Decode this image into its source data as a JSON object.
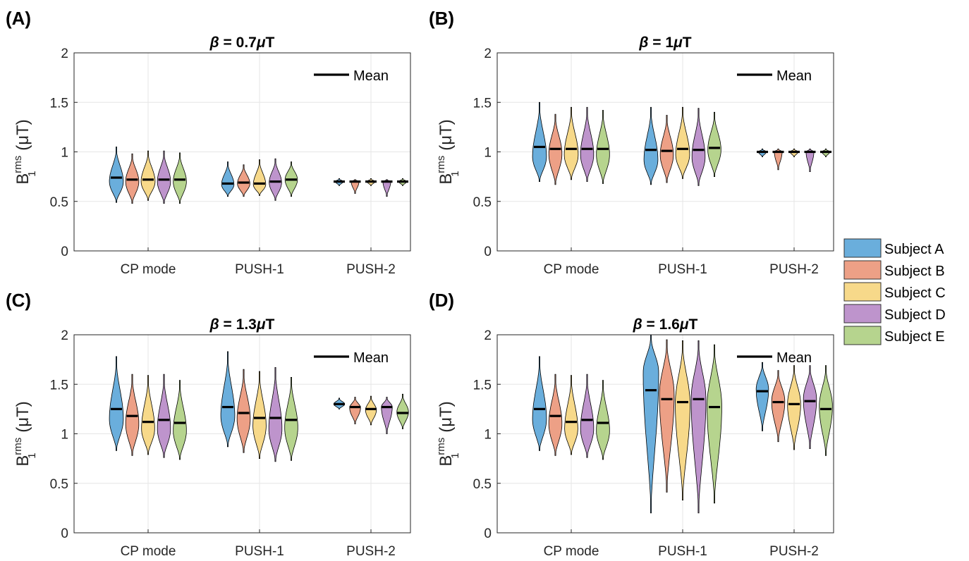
{
  "chart_data": [
    {
      "type": "violin",
      "panel_label": "(A)",
      "title": {
        "symbol": "β",
        "value": " = 0.7",
        "unit_mu": "μ",
        "unit": "T"
      },
      "ylabel": {
        "base": "B",
        "sub": "1",
        "sup": "rms",
        "unit": " (μT)"
      },
      "ylim": [
        0,
        2
      ],
      "yticks": [
        "0",
        "0.5",
        "1",
        "1.5",
        "2"
      ],
      "categories": [
        "CP mode",
        "PUSH-1",
        "PUSH-2"
      ],
      "mean_legend": "Mean",
      "series": [
        {
          "name": "Subject A",
          "violins": [
            {
              "mean": 0.74,
              "min": 0.49,
              "max": 1.05,
              "peak": 0.7,
              "w": 0.9
            },
            {
              "mean": 0.68,
              "min": 0.55,
              "max": 0.9,
              "peak": 0.67,
              "w": 0.8
            },
            {
              "mean": 0.7,
              "min": 0.66,
              "max": 0.73,
              "peak": 0.7,
              "w": 0.5
            }
          ]
        },
        {
          "name": "Subject B",
          "violins": [
            {
              "mean": 0.72,
              "min": 0.48,
              "max": 0.98,
              "peak": 0.7,
              "w": 0.85
            },
            {
              "mean": 0.69,
              "min": 0.55,
              "max": 0.87,
              "peak": 0.68,
              "w": 0.8
            },
            {
              "mean": 0.7,
              "min": 0.58,
              "max": 0.72,
              "peak": 0.7,
              "w": 0.5
            }
          ]
        },
        {
          "name": "Subject C",
          "violins": [
            {
              "mean": 0.72,
              "min": 0.51,
              "max": 1.01,
              "peak": 0.7,
              "w": 0.9
            },
            {
              "mean": 0.68,
              "min": 0.56,
              "max": 0.92,
              "peak": 0.67,
              "w": 0.8
            },
            {
              "mean": 0.7,
              "min": 0.66,
              "max": 0.73,
              "peak": 0.7,
              "w": 0.5
            }
          ]
        },
        {
          "name": "Subject D",
          "violins": [
            {
              "mean": 0.72,
              "min": 0.48,
              "max": 1.01,
              "peak": 0.7,
              "w": 0.85
            },
            {
              "mean": 0.7,
              "min": 0.51,
              "max": 0.93,
              "peak": 0.69,
              "w": 0.8
            },
            {
              "mean": 0.7,
              "min": 0.55,
              "max": 0.72,
              "peak": 0.7,
              "w": 0.5
            }
          ]
        },
        {
          "name": "Subject E",
          "violins": [
            {
              "mean": 0.72,
              "min": 0.48,
              "max": 0.99,
              "peak": 0.7,
              "w": 0.85
            },
            {
              "mean": 0.72,
              "min": 0.55,
              "max": 0.9,
              "peak": 0.72,
              "w": 0.8
            },
            {
              "mean": 0.7,
              "min": 0.66,
              "max": 0.73,
              "peak": 0.7,
              "w": 0.5
            }
          ]
        }
      ]
    },
    {
      "type": "violin",
      "panel_label": "(B)",
      "title": {
        "symbol": "β",
        "value": " = 1",
        "unit_mu": "μ",
        "unit": "T"
      },
      "ylabel": {
        "base": "B",
        "sub": "1",
        "sup": "rms",
        "unit": " (μT)"
      },
      "ylim": [
        0,
        2
      ],
      "yticks": [
        "0",
        "0.5",
        "1",
        "1.5",
        "2"
      ],
      "categories": [
        "CP mode",
        "PUSH-1",
        "PUSH-2"
      ],
      "mean_legend": "Mean",
      "series": [
        {
          "name": "Subject A",
          "violins": [
            {
              "mean": 1.05,
              "min": 0.7,
              "max": 1.5,
              "peak": 0.95,
              "w": 0.9
            },
            {
              "mean": 1.02,
              "min": 0.67,
              "max": 1.45,
              "peak": 0.92,
              "w": 0.9
            },
            {
              "mean": 1.0,
              "min": 0.95,
              "max": 1.03,
              "peak": 1.0,
              "w": 0.5
            }
          ]
        },
        {
          "name": "Subject B",
          "violins": [
            {
              "mean": 1.03,
              "min": 0.67,
              "max": 1.38,
              "peak": 0.98,
              "w": 0.85
            },
            {
              "mean": 1.01,
              "min": 0.69,
              "max": 1.37,
              "peak": 0.97,
              "w": 0.85
            },
            {
              "mean": 1.0,
              "min": 0.82,
              "max": 1.03,
              "peak": 1.0,
              "w": 0.5
            }
          ]
        },
        {
          "name": "Subject C",
          "violins": [
            {
              "mean": 1.03,
              "min": 0.72,
              "max": 1.45,
              "peak": 0.97,
              "w": 0.9
            },
            {
              "mean": 1.03,
              "min": 0.73,
              "max": 1.45,
              "peak": 0.97,
              "w": 0.9
            },
            {
              "mean": 1.0,
              "min": 0.95,
              "max": 1.03,
              "peak": 1.0,
              "w": 0.5
            }
          ]
        },
        {
          "name": "Subject D",
          "violins": [
            {
              "mean": 1.03,
              "min": 0.7,
              "max": 1.45,
              "peak": 0.97,
              "w": 0.85
            },
            {
              "mean": 1.02,
              "min": 0.66,
              "max": 1.44,
              "peak": 0.95,
              "w": 0.85
            },
            {
              "mean": 1.0,
              "min": 0.8,
              "max": 1.03,
              "peak": 1.0,
              "w": 0.5
            }
          ]
        },
        {
          "name": "Subject E",
          "violins": [
            {
              "mean": 1.03,
              "min": 0.68,
              "max": 1.42,
              "peak": 0.97,
              "w": 0.85
            },
            {
              "mean": 1.04,
              "min": 0.75,
              "max": 1.4,
              "peak": 1.02,
              "w": 0.85
            },
            {
              "mean": 1.0,
              "min": 0.95,
              "max": 1.03,
              "peak": 1.0,
              "w": 0.5
            }
          ]
        }
      ]
    },
    {
      "type": "violin",
      "panel_label": "(C)",
      "title": {
        "symbol": "β",
        "value": " = 1.3",
        "unit_mu": "μ",
        "unit": "T"
      },
      "ylabel": {
        "base": "B",
        "sub": "1",
        "sup": "rms",
        "unit": " (μT)"
      },
      "ylim": [
        0,
        2
      ],
      "yticks": [
        "0",
        "0.5",
        "1",
        "1.5",
        "2"
      ],
      "categories": [
        "CP mode",
        "PUSH-1",
        "PUSH-2"
      ],
      "mean_legend": "Mean",
      "series": [
        {
          "name": "Subject A",
          "violins": [
            {
              "mean": 1.25,
              "min": 0.83,
              "max": 1.78,
              "peak": 1.15,
              "w": 0.9
            },
            {
              "mean": 1.27,
              "min": 0.87,
              "max": 1.83,
              "peak": 1.18,
              "w": 0.9
            },
            {
              "mean": 1.3,
              "min": 1.25,
              "max": 1.36,
              "peak": 1.3,
              "w": 0.7
            }
          ]
        },
        {
          "name": "Subject B",
          "violins": [
            {
              "mean": 1.18,
              "min": 0.78,
              "max": 1.6,
              "peak": 1.1,
              "w": 0.85
            },
            {
              "mean": 1.21,
              "min": 0.81,
              "max": 1.65,
              "peak": 1.15,
              "w": 0.85
            },
            {
              "mean": 1.27,
              "min": 1.1,
              "max": 1.37,
              "peak": 1.26,
              "w": 0.7
            }
          ]
        },
        {
          "name": "Subject C",
          "violins": [
            {
              "mean": 1.12,
              "min": 0.79,
              "max": 1.59,
              "peak": 1.05,
              "w": 0.85
            },
            {
              "mean": 1.16,
              "min": 0.75,
              "max": 1.63,
              "peak": 1.08,
              "w": 0.85
            },
            {
              "mean": 1.25,
              "min": 1.09,
              "max": 1.38,
              "peak": 1.24,
              "w": 0.7
            }
          ]
        },
        {
          "name": "Subject D",
          "violins": [
            {
              "mean": 1.14,
              "min": 0.76,
              "max": 1.6,
              "peak": 1.05,
              "w": 0.85
            },
            {
              "mean": 1.16,
              "min": 0.72,
              "max": 1.67,
              "peak": 1.05,
              "w": 0.85
            },
            {
              "mean": 1.27,
              "min": 1.0,
              "max": 1.37,
              "peak": 1.27,
              "w": 0.7
            }
          ]
        },
        {
          "name": "Subject E",
          "violins": [
            {
              "mean": 1.11,
              "min": 0.74,
              "max": 1.54,
              "peak": 1.03,
              "w": 0.85
            },
            {
              "mean": 1.14,
              "min": 0.73,
              "max": 1.57,
              "peak": 1.06,
              "w": 0.85
            },
            {
              "mean": 1.21,
              "min": 1.05,
              "max": 1.4,
              "peak": 1.22,
              "w": 0.75
            }
          ]
        }
      ]
    },
    {
      "type": "violin",
      "panel_label": "(D)",
      "title": {
        "symbol": "β",
        "value": " = 1.6",
        "unit_mu": "μ",
        "unit": "T"
      },
      "ylabel": {
        "base": "B",
        "sub": "1",
        "sup": "rms",
        "unit": " (μT)"
      },
      "ylim": [
        0,
        2
      ],
      "yticks": [
        "0",
        "0.5",
        "1",
        "1.5",
        "2"
      ],
      "categories": [
        "CP mode",
        "PUSH-1",
        "PUSH-2"
      ],
      "mean_legend": "Mean",
      "series": [
        {
          "name": "Subject A",
          "violins": [
            {
              "mean": 1.25,
              "min": 0.83,
              "max": 1.78,
              "peak": 1.15,
              "w": 0.9
            },
            {
              "mean": 1.44,
              "min": 0.2,
              "max": 2.0,
              "peak": 1.62,
              "w": 1.0
            },
            {
              "mean": 1.43,
              "min": 1.03,
              "max": 1.72,
              "peak": 1.45,
              "w": 0.8
            }
          ]
        },
        {
          "name": "Subject B",
          "violins": [
            {
              "mean": 1.18,
              "min": 0.78,
              "max": 1.6,
              "peak": 1.1,
              "w": 0.85
            },
            {
              "mean": 1.35,
              "min": 0.41,
              "max": 1.95,
              "peak": 1.4,
              "w": 0.95
            },
            {
              "mean": 1.32,
              "min": 0.92,
              "max": 1.64,
              "peak": 1.33,
              "w": 0.85
            }
          ]
        },
        {
          "name": "Subject C",
          "violins": [
            {
              "mean": 1.12,
              "min": 0.79,
              "max": 1.59,
              "peak": 1.05,
              "w": 0.85
            },
            {
              "mean": 1.32,
              "min": 0.33,
              "max": 1.94,
              "peak": 1.3,
              "w": 0.95
            },
            {
              "mean": 1.3,
              "min": 0.84,
              "max": 1.69,
              "peak": 1.3,
              "w": 0.85
            }
          ]
        },
        {
          "name": "Subject D",
          "violins": [
            {
              "mean": 1.14,
              "min": 0.76,
              "max": 1.6,
              "peak": 1.05,
              "w": 0.85
            },
            {
              "mean": 1.35,
              "min": 0.2,
              "max": 1.94,
              "peak": 1.35,
              "w": 0.95
            },
            {
              "mean": 1.33,
              "min": 0.85,
              "max": 1.69,
              "peak": 1.35,
              "w": 0.85
            }
          ]
        },
        {
          "name": "Subject E",
          "violins": [
            {
              "mean": 1.11,
              "min": 0.74,
              "max": 1.54,
              "peak": 1.03,
              "w": 0.85
            },
            {
              "mean": 1.27,
              "min": 0.3,
              "max": 1.9,
              "peak": 1.28,
              "w": 0.95
            },
            {
              "mean": 1.25,
              "min": 0.78,
              "max": 1.69,
              "peak": 1.28,
              "w": 0.85
            }
          ]
        }
      ]
    }
  ],
  "legend": {
    "items": [
      {
        "label": "Subject A",
        "color": "#6aaedc"
      },
      {
        "label": "Subject B",
        "color": "#eda086"
      },
      {
        "label": "Subject C",
        "color": "#f7d98a"
      },
      {
        "label": "Subject D",
        "color": "#be94cc"
      },
      {
        "label": "Subject E",
        "color": "#b6d48e"
      }
    ]
  }
}
